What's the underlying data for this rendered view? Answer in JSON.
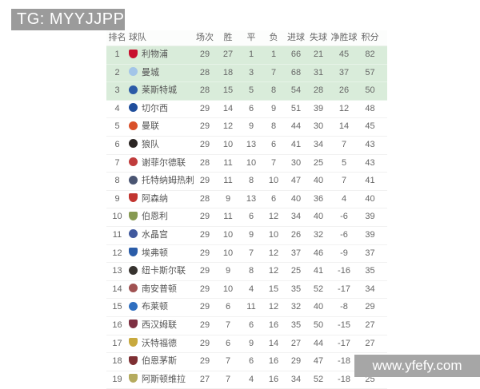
{
  "watermarks": {
    "tg_label": "TG: MYYJJPP",
    "site_label": "www.yfefy.com"
  },
  "colors": {
    "highlight_row": "#d9ecda",
    "banner_gray": "#9b9b9b",
    "table_text": "#666666"
  },
  "table": {
    "headers": [
      "排名",
      "球队",
      "场次",
      "胜",
      "平",
      "负",
      "进球",
      "失球",
      "净胜球",
      "积分"
    ],
    "rows": [
      {
        "rank": "1",
        "team": "利物浦",
        "badge_color": "#c8102e",
        "badge_shape": "shield",
        "played": "29",
        "win": "27",
        "draw": "1",
        "loss": "1",
        "gf": "66",
        "ga": "21",
        "gd": "45",
        "pts": "82",
        "highlight": true
      },
      {
        "rank": "2",
        "team": "曼城",
        "badge_color": "#a3c5e8",
        "badge_shape": "circle",
        "played": "28",
        "win": "18",
        "draw": "3",
        "loss": "7",
        "gf": "68",
        "ga": "31",
        "gd": "37",
        "pts": "57",
        "highlight": true
      },
      {
        "rank": "3",
        "team": "莱斯特城",
        "badge_color": "#2b5aa7",
        "badge_shape": "circle",
        "played": "28",
        "win": "15",
        "draw": "5",
        "loss": "8",
        "gf": "54",
        "ga": "28",
        "gd": "26",
        "pts": "50",
        "highlight": true
      },
      {
        "rank": "4",
        "team": "切尔西",
        "badge_color": "#1f4e9c",
        "badge_shape": "circle",
        "played": "29",
        "win": "14",
        "draw": "6",
        "loss": "9",
        "gf": "51",
        "ga": "39",
        "gd": "12",
        "pts": "48",
        "highlight": false
      },
      {
        "rank": "5",
        "team": "曼联",
        "badge_color": "#d9502a",
        "badge_shape": "circle",
        "played": "29",
        "win": "12",
        "draw": "9",
        "loss": "8",
        "gf": "44",
        "ga": "30",
        "gd": "14",
        "pts": "45",
        "highlight": false
      },
      {
        "rank": "6",
        "team": "狼队",
        "badge_color": "#2b2523",
        "badge_shape": "circle",
        "played": "29",
        "win": "10",
        "draw": "13",
        "loss": "6",
        "gf": "41",
        "ga": "34",
        "gd": "7",
        "pts": "43",
        "highlight": false
      },
      {
        "rank": "7",
        "team": "谢菲尔德联",
        "badge_color": "#c03c3c",
        "badge_shape": "circle",
        "played": "28",
        "win": "11",
        "draw": "10",
        "loss": "7",
        "gf": "30",
        "ga": "25",
        "gd": "5",
        "pts": "43",
        "highlight": false
      },
      {
        "rank": "8",
        "team": "托特纳姆热刺",
        "badge_color": "#4a5572",
        "badge_shape": "circle",
        "played": "29",
        "win": "11",
        "draw": "8",
        "loss": "10",
        "gf": "47",
        "ga": "40",
        "gd": "7",
        "pts": "41",
        "highlight": false
      },
      {
        "rank": "9",
        "team": "阿森纳",
        "badge_color": "#c23530",
        "badge_shape": "shield",
        "played": "28",
        "win": "9",
        "draw": "13",
        "loss": "6",
        "gf": "40",
        "ga": "36",
        "gd": "4",
        "pts": "40",
        "highlight": false
      },
      {
        "rank": "10",
        "team": "伯恩利",
        "badge_color": "#879a52",
        "badge_shape": "shield",
        "played": "29",
        "win": "11",
        "draw": "6",
        "loss": "12",
        "gf": "34",
        "ga": "40",
        "gd": "-6",
        "pts": "39",
        "highlight": false
      },
      {
        "rank": "11",
        "team": "水晶宫",
        "badge_color": "#41599e",
        "badge_shape": "circle",
        "played": "29",
        "win": "10",
        "draw": "9",
        "loss": "10",
        "gf": "26",
        "ga": "32",
        "gd": "-6",
        "pts": "39",
        "highlight": false
      },
      {
        "rank": "12",
        "team": "埃弗顿",
        "badge_color": "#2a5ca8",
        "badge_shape": "shield",
        "played": "29",
        "win": "10",
        "draw": "7",
        "loss": "12",
        "gf": "37",
        "ga": "46",
        "gd": "-9",
        "pts": "37",
        "highlight": false
      },
      {
        "rank": "13",
        "team": "纽卡斯尔联",
        "badge_color": "#37332f",
        "badge_shape": "circle",
        "played": "29",
        "win": "9",
        "draw": "8",
        "loss": "12",
        "gf": "25",
        "ga": "41",
        "gd": "-16",
        "pts": "35",
        "highlight": false
      },
      {
        "rank": "14",
        "team": "南安普顿",
        "badge_color": "#a05252",
        "badge_shape": "circle",
        "played": "29",
        "win": "10",
        "draw": "4",
        "loss": "15",
        "gf": "35",
        "ga": "52",
        "gd": "-17",
        "pts": "34",
        "highlight": false
      },
      {
        "rank": "15",
        "team": "布莱顿",
        "badge_color": "#2f6fc0",
        "badge_shape": "circle",
        "played": "29",
        "win": "6",
        "draw": "11",
        "loss": "12",
        "gf": "32",
        "ga": "40",
        "gd": "-8",
        "pts": "29",
        "highlight": false
      },
      {
        "rank": "16",
        "team": "西汉姆联",
        "badge_color": "#7e3042",
        "badge_shape": "shield",
        "played": "29",
        "win": "7",
        "draw": "6",
        "loss": "16",
        "gf": "35",
        "ga": "50",
        "gd": "-15",
        "pts": "27",
        "highlight": false
      },
      {
        "rank": "17",
        "team": "沃特福德",
        "badge_color": "#c8a93e",
        "badge_shape": "shield",
        "played": "29",
        "win": "6",
        "draw": "9",
        "loss": "14",
        "gf": "27",
        "ga": "44",
        "gd": "-17",
        "pts": "27",
        "highlight": false
      },
      {
        "rank": "18",
        "team": "伯恩茅斯",
        "badge_color": "#7e2f33",
        "badge_shape": "shield",
        "played": "29",
        "win": "7",
        "draw": "6",
        "loss": "16",
        "gf": "29",
        "ga": "47",
        "gd": "-18",
        "pts": "27",
        "highlight": false
      },
      {
        "rank": "19",
        "team": "阿斯顿维拉",
        "badge_color": "#b5ab5e",
        "badge_shape": "shield",
        "played": "27",
        "win": "7",
        "draw": "4",
        "loss": "16",
        "gf": "34",
        "ga": "52",
        "gd": "-18",
        "pts": "25",
        "highlight": false
      }
    ]
  }
}
